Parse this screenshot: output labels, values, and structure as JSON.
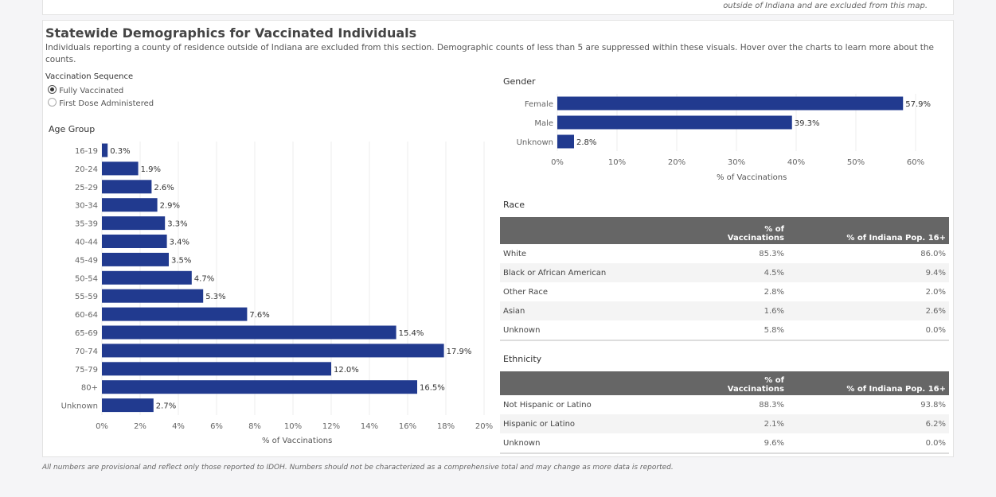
{
  "top_card": {
    "note": "outside of Indiana and are excluded from this map."
  },
  "section": {
    "title": "Statewide Demographics for Vaccinated Individuals",
    "description": "Individuals reporting a county of residence outside of Indiana are excluded from this section. Demographic counts of less than 5 are suppressed within these visuals. Hover over the charts to learn more about the counts."
  },
  "filter": {
    "label": "Vaccination Sequence",
    "options": [
      {
        "label": "Fully Vaccinated",
        "selected": true
      },
      {
        "label": "First Dose Administered",
        "selected": false
      }
    ]
  },
  "colors": {
    "bar": "#213a8f",
    "table_header": "#666666"
  },
  "chart_data": [
    {
      "type": "bar",
      "orientation": "horizontal",
      "title": "Age Group",
      "xlabel": "% of Vaccinations",
      "categories": [
        "16-19",
        "20-24",
        "25-29",
        "30-34",
        "35-39",
        "40-44",
        "45-49",
        "50-54",
        "55-59",
        "60-64",
        "65-69",
        "70-74",
        "75-79",
        "80+",
        "Unknown"
      ],
      "values": [
        0.3,
        1.9,
        2.6,
        2.9,
        3.3,
        3.4,
        3.5,
        4.7,
        5.3,
        7.6,
        15.4,
        17.9,
        12.0,
        16.5,
        2.7
      ],
      "value_labels": [
        "0.3%",
        "1.9%",
        "2.6%",
        "2.9%",
        "3.3%",
        "3.4%",
        "3.5%",
        "4.7%",
        "5.3%",
        "7.6%",
        "15.4%",
        "17.9%",
        "12.0%",
        "16.5%",
        "2.7%"
      ],
      "xlim": [
        0,
        20
      ],
      "ticks": [
        "0%",
        "2%",
        "4%",
        "6%",
        "8%",
        "10%",
        "12%",
        "14%",
        "16%",
        "18%",
        "20%"
      ],
      "grid": true
    },
    {
      "type": "bar",
      "orientation": "horizontal",
      "title": "Gender",
      "xlabel": "% of Vaccinations",
      "categories": [
        "Female",
        "Male",
        "Unknown"
      ],
      "values": [
        57.9,
        39.3,
        2.8
      ],
      "value_labels": [
        "57.9%",
        "39.3%",
        "2.8%"
      ],
      "xlim": [
        0,
        60
      ],
      "ticks": [
        "0%",
        "10%",
        "20%",
        "30%",
        "40%",
        "50%",
        "60%"
      ],
      "grid": true
    },
    {
      "type": "table",
      "title": "Race",
      "columns": [
        "",
        "% of Vaccinations",
        "% of Indiana Pop. 16+"
      ],
      "rows": [
        [
          "White",
          "85.3%",
          "86.0%"
        ],
        [
          "Black or African American",
          "4.5%",
          "9.4%"
        ],
        [
          "Other Race",
          "2.8%",
          "2.0%"
        ],
        [
          "Asian",
          "1.6%",
          "2.6%"
        ],
        [
          "Unknown",
          "5.8%",
          "0.0%"
        ]
      ]
    },
    {
      "type": "table",
      "title": "Ethnicity",
      "columns": [
        "",
        "% of Vaccinations",
        "% of Indiana Pop. 16+"
      ],
      "rows": [
        [
          "Not Hispanic or Latino",
          "88.3%",
          "93.8%"
        ],
        [
          "Hispanic or Latino",
          "2.1%",
          "6.2%"
        ],
        [
          "Unknown",
          "9.6%",
          "0.0%"
        ]
      ]
    }
  ],
  "footer": "All numbers are provisional and reflect only those reported to IDOH. Numbers should not be characterized as a comprehensive total and may change as more data is reported."
}
